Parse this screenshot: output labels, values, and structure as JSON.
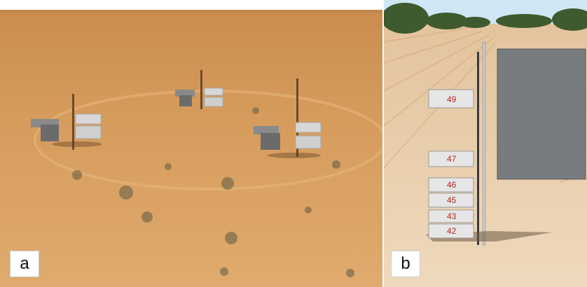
{
  "figure": {
    "panels": [
      {
        "label": "a",
        "description_icon": "desert-sand-trap-photo"
      },
      {
        "label": "b",
        "description_icon": "field-sand-sampler-photo"
      }
    ],
    "sampler_tags": [
      "49",
      "47",
      "46",
      "45",
      "43",
      "42"
    ],
    "colors": {
      "sand_a": "#d9a15e",
      "sand_b": "#ead0ae",
      "sky": "#cfe6f5",
      "board": "#777c80"
    }
  }
}
